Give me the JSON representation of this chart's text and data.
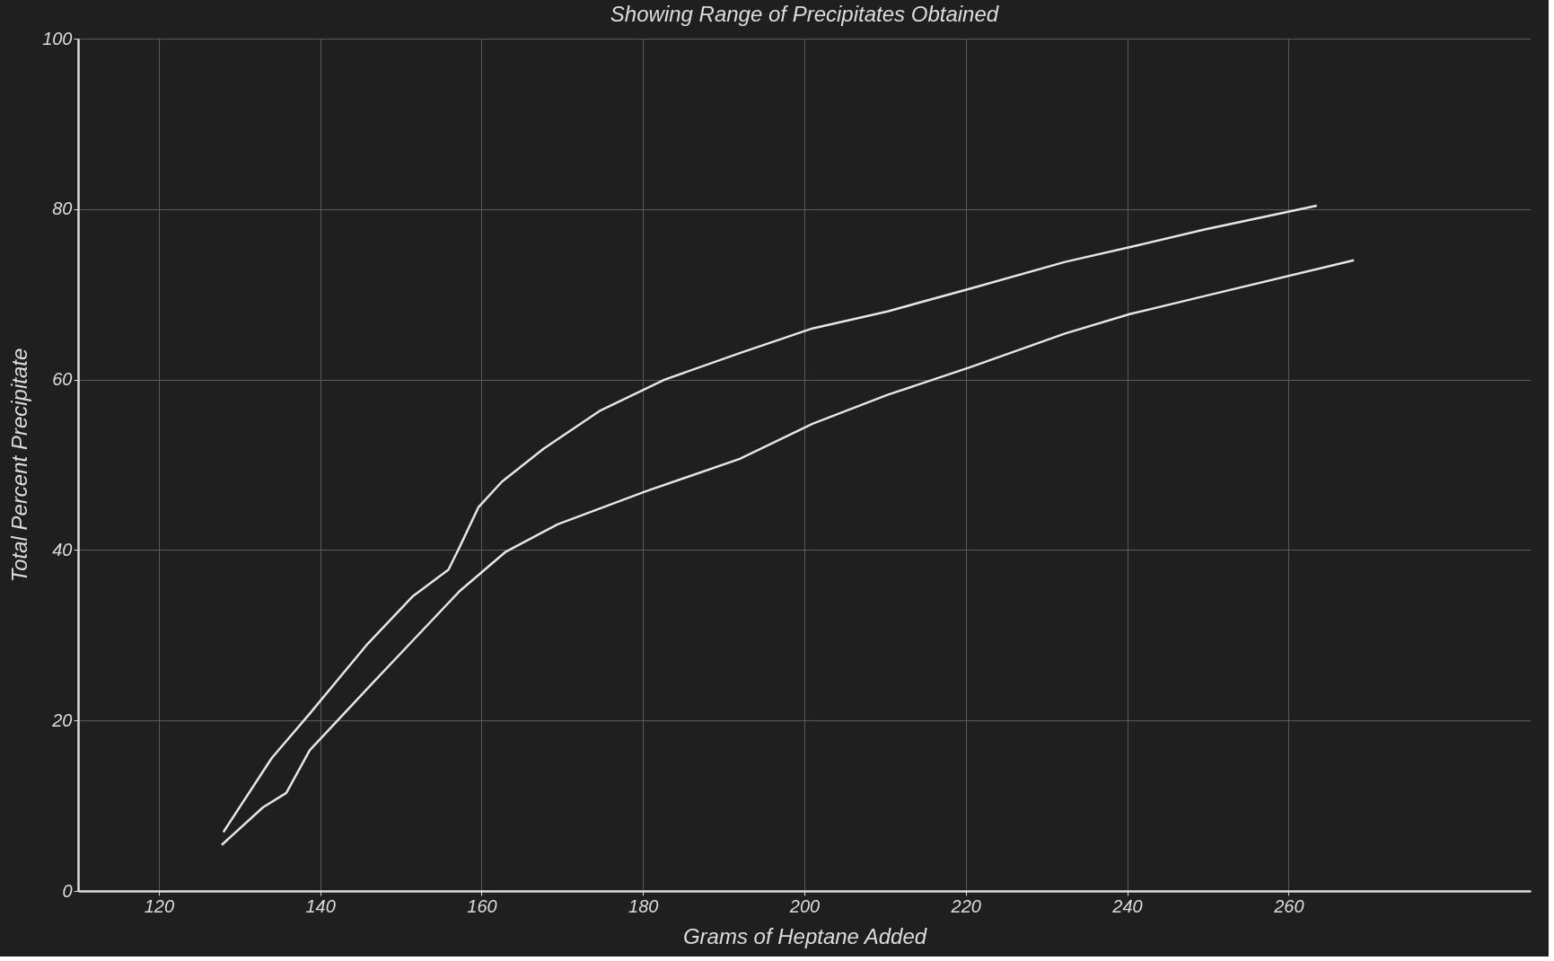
{
  "chart_data": {
    "type": "line",
    "title": "Showing Range of Precipitates Obtained",
    "xlabel": "Grams of Heptane Added",
    "ylabel": "Total Percent Precipitate",
    "series": [
      {
        "color": "#e6e6e6",
        "x": [
          128,
          134,
          138.7,
          145.7,
          151.5,
          155.9,
          157.3,
          159.6,
          162.5,
          167.7,
          174.6,
          182.7,
          192,
          201,
          210.3,
          220.7,
          232.3,
          241.5,
          249.6,
          263.5
        ],
        "values": [
          6.9,
          15.6,
          20.8,
          28.8,
          34.6,
          37.7,
          40.4,
          45,
          48,
          51.9,
          56.3,
          60,
          63.1,
          66,
          68,
          70.7,
          73.8,
          75.8,
          77.6,
          80.4
        ]
      },
      {
        "color": "#e6e6e6",
        "x": [
          127.8,
          132.9,
          135.8,
          138.7,
          145.7,
          151.5,
          157.3,
          163,
          169.4,
          180.4,
          192,
          201,
          210.3,
          220.7,
          232.3,
          240.4,
          249.6,
          268.1
        ],
        "values": [
          5.4,
          9.8,
          11.5,
          16.5,
          23.6,
          29.4,
          35.2,
          39.8,
          43,
          46.9,
          50.7,
          54.8,
          58.2,
          61.5,
          65.4,
          67.7,
          69.8,
          74
        ]
      }
    ],
    "xlim": [
      110,
      290
    ],
    "xticks": [
      120,
      140,
      160,
      180,
      200,
      220,
      240,
      260
    ],
    "ylim": [
      0,
      100
    ],
    "yticks": [
      0,
      20,
      40,
      60,
      80,
      100
    ],
    "grid": true,
    "marker": "none",
    "line_style": "solid"
  }
}
